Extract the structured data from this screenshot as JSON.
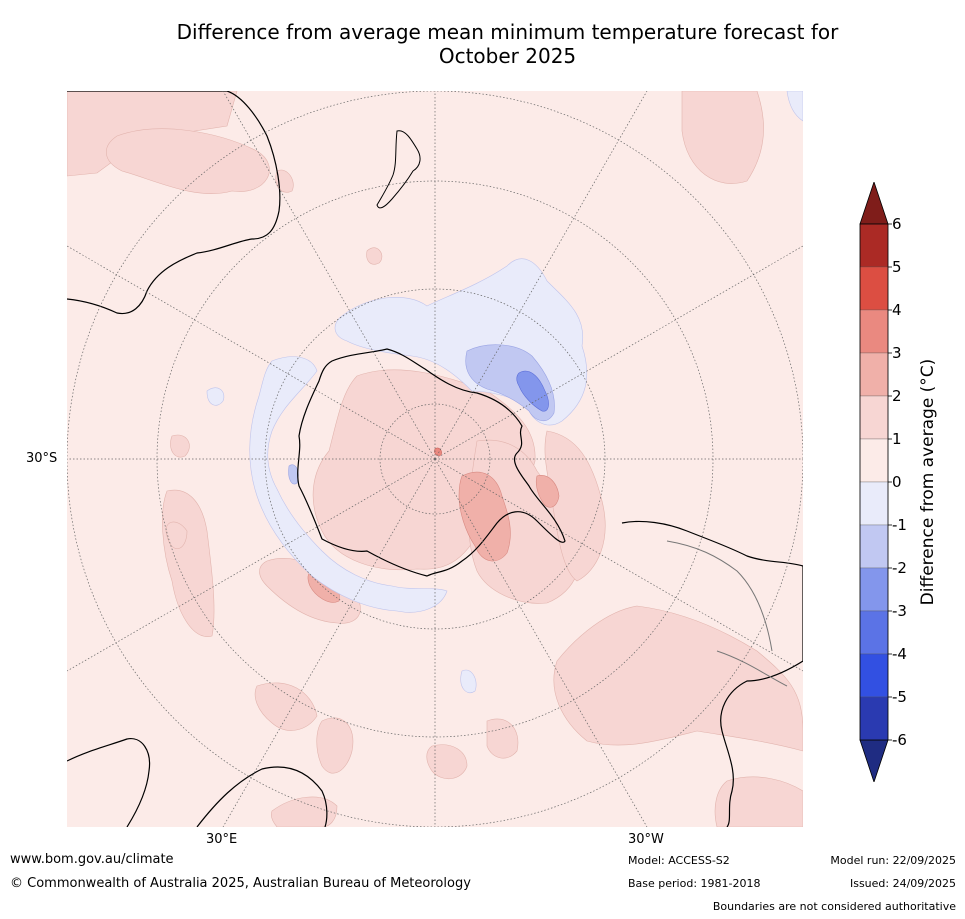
{
  "title": {
    "line1": "Difference from average mean minimum temperature forecast for",
    "line2": "October 2025"
  },
  "map": {
    "projection": "south-polar-stereographic",
    "lat_label": "30°S",
    "lon_labels": {
      "east": "30°E",
      "west": "30°W"
    }
  },
  "colorbar": {
    "label": "Difference from average (°C)",
    "ticks": [
      "6",
      "5",
      "4",
      "3",
      "2",
      "1",
      "0",
      "-1",
      "-2",
      "-3",
      "-4",
      "-5",
      "-6"
    ],
    "tick_values": [
      6,
      5,
      4,
      3,
      2,
      1,
      0,
      -1,
      -2,
      -3,
      -4,
      -5,
      -6
    ],
    "bins": [
      {
        "range": [
          5,
          6
        ],
        "color": "#ab2a25"
      },
      {
        "range": [
          4,
          5
        ],
        "color": "#dc4e42"
      },
      {
        "range": [
          3,
          4
        ],
        "color": "#ea8980"
      },
      {
        "range": [
          2,
          3
        ],
        "color": "#f0b0a9"
      },
      {
        "range": [
          1,
          2
        ],
        "color": "#f7d6d3"
      },
      {
        "range": [
          0,
          1
        ],
        "color": "#fcebe8"
      },
      {
        "range": [
          -1,
          0
        ],
        "color": "#e9ebfa"
      },
      {
        "range": [
          -2,
          -1
        ],
        "color": "#c1c8f2"
      },
      {
        "range": [
          -3,
          -2
        ],
        "color": "#8396ec"
      },
      {
        "range": [
          -4,
          -3
        ],
        "color": "#5b73e6"
      },
      {
        "range": [
          -5,
          -4
        ],
        "color": "#3250e2"
      },
      {
        "range": [
          -6,
          -5
        ],
        "color": "#2a3ab1"
      }
    ],
    "over_color": "#7f1d1a",
    "under_color": "#1f2c82"
  },
  "footer": {
    "website": "www.bom.gov.au/climate",
    "copyright": "© Commonwealth of Australia 2025, Australian Bureau of Meteorology",
    "model": "Model: ACCESS-S2",
    "base_period": "Base period: 1981-2018",
    "model_run": "Model run: 22/09/2025",
    "issued": "Issued: 24/09/2025",
    "disclaimer": "Boundaries are not considered authoritative"
  }
}
